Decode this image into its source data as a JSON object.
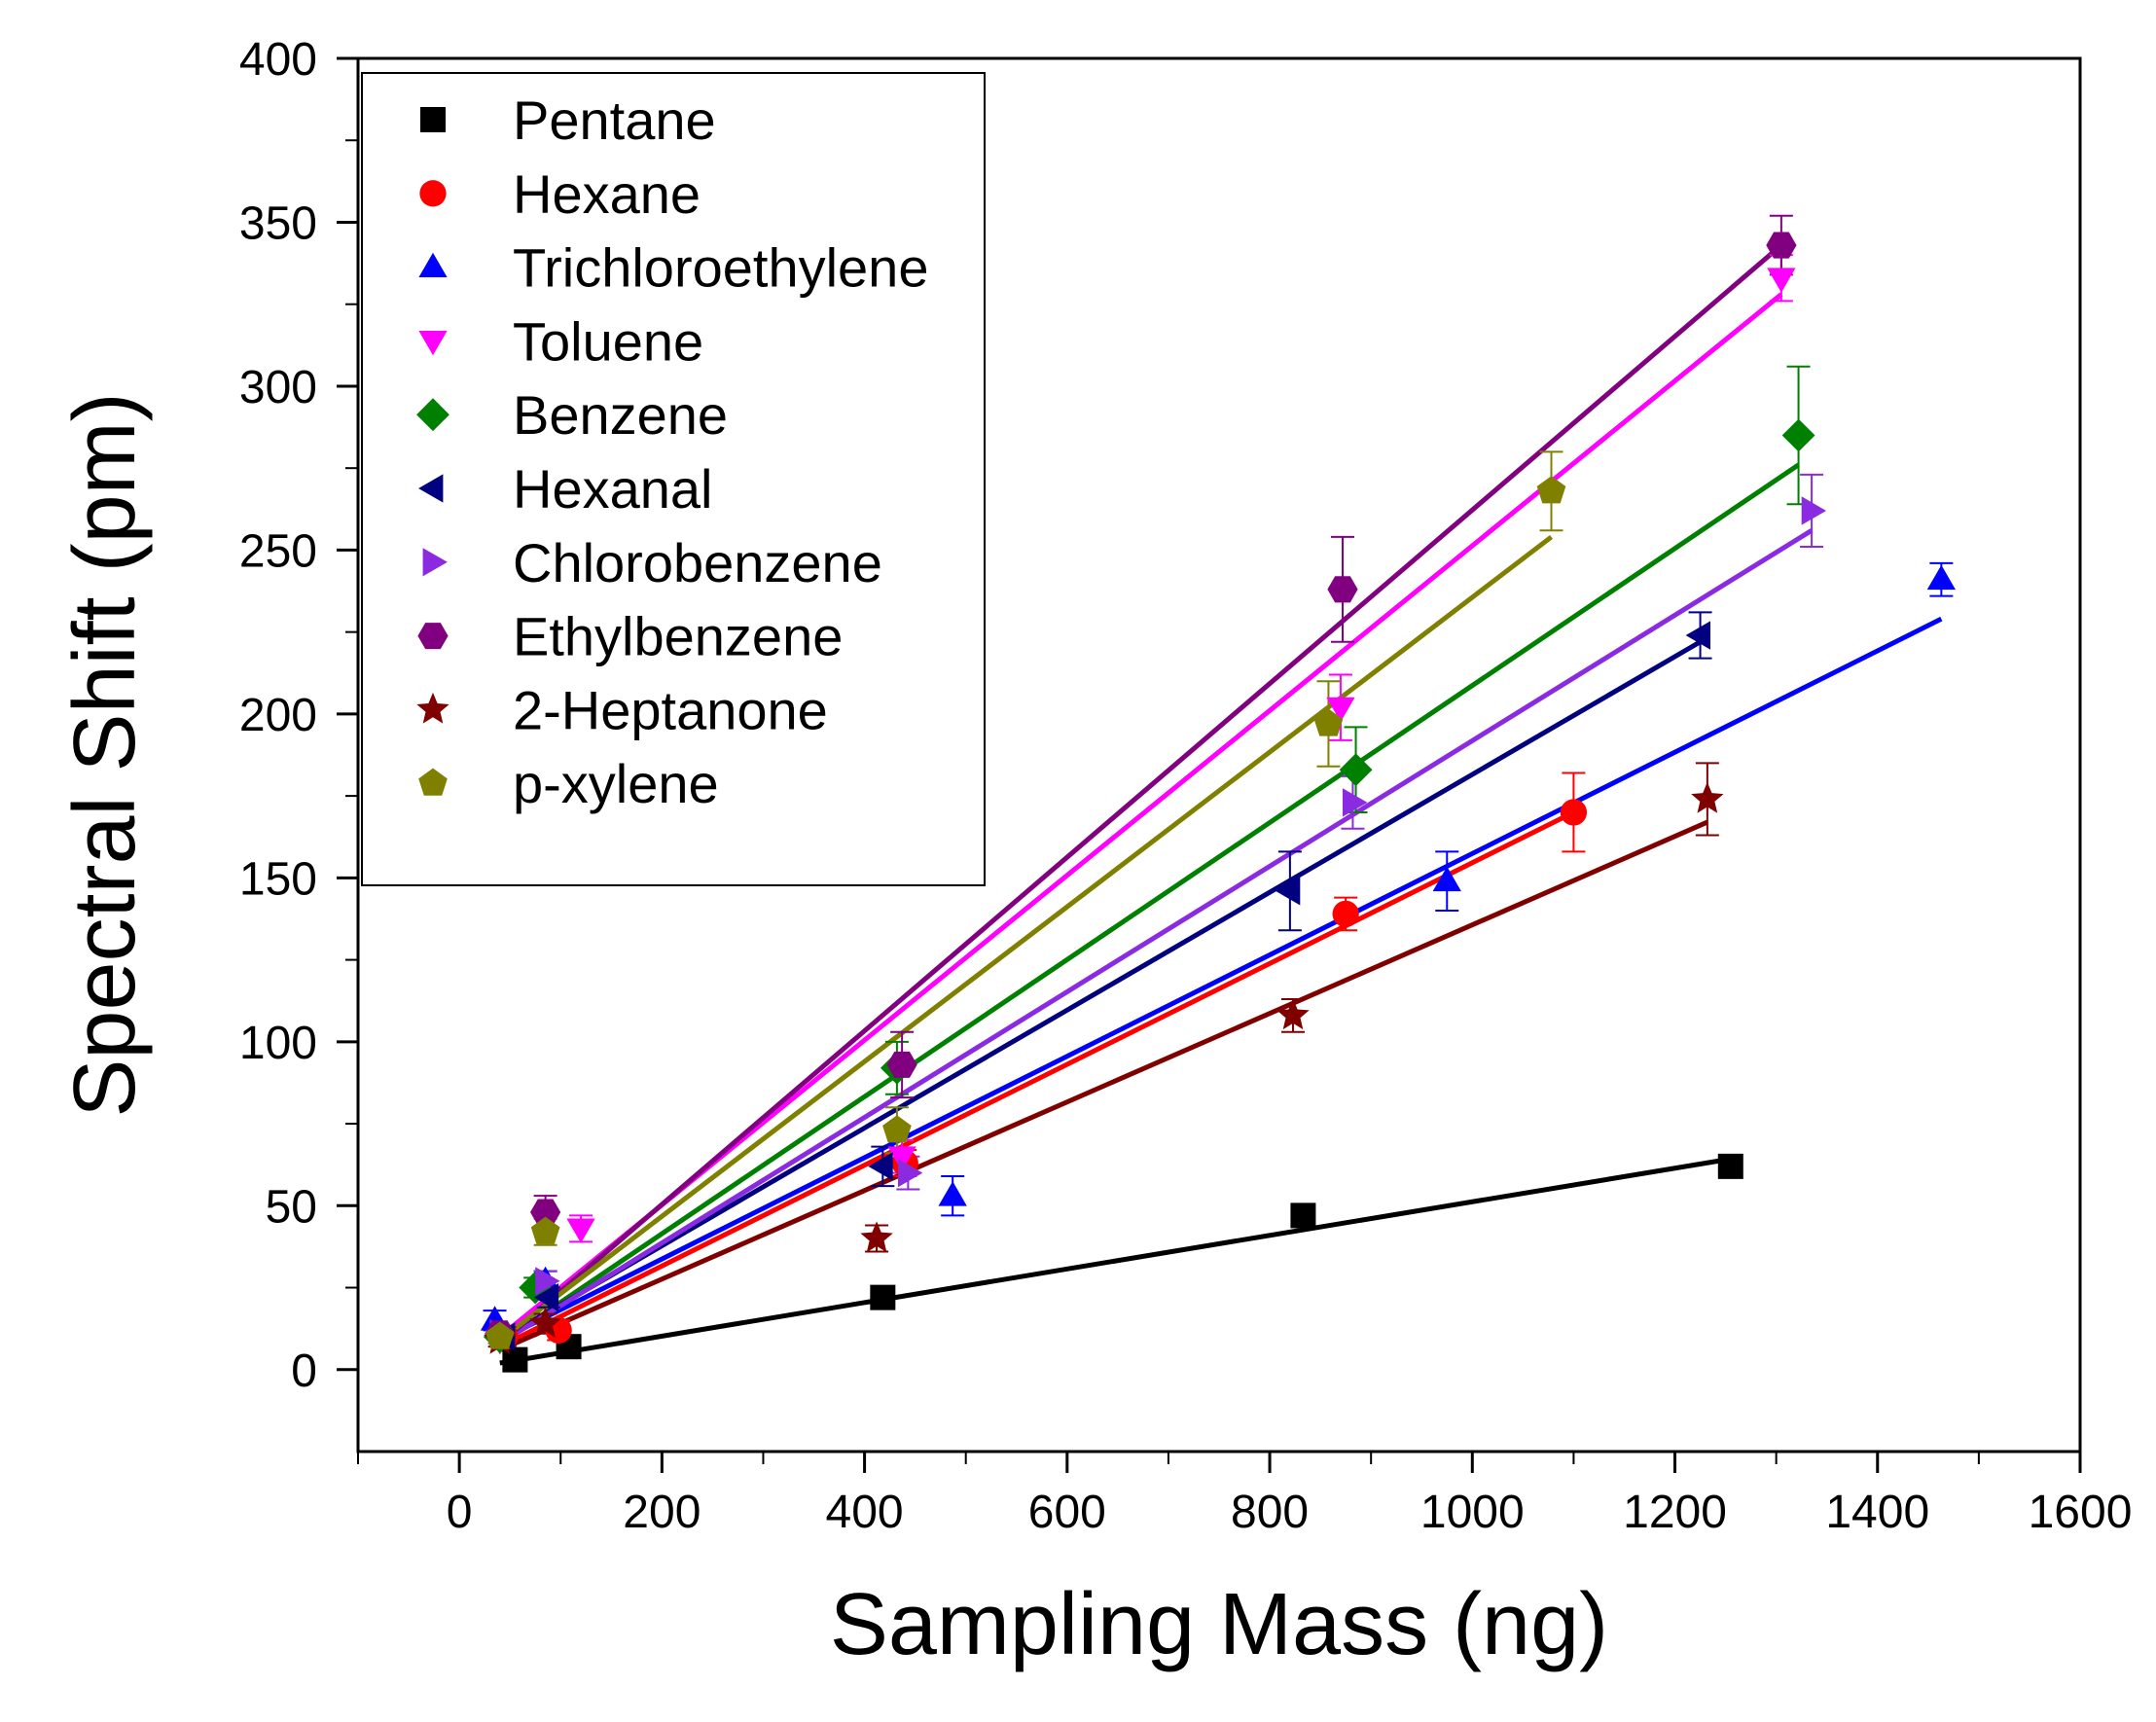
{
  "chart_data": {
    "type": "scatter",
    "title": "",
    "xlabel": "Sampling Mass (ng)",
    "ylabel": "Spectral Shift (pm)",
    "xlim": [
      -100,
      1600
    ],
    "ylim": [
      -25,
      400
    ],
    "xticks": [
      0,
      200,
      400,
      600,
      800,
      1000,
      1200,
      1400,
      1600
    ],
    "yticks": [
      0,
      50,
      100,
      150,
      200,
      250,
      300,
      350,
      400
    ],
    "x_tick_labels": [
      "0",
      "200",
      "400",
      "600",
      "800",
      "1000",
      "1200",
      "1400",
      "1600"
    ],
    "y_tick_labels": [
      "0",
      "50",
      "100",
      "150",
      "200",
      "250",
      "300",
      "350",
      "400"
    ],
    "grid": false,
    "legend_position": "top-left",
    "series": [
      {
        "name": "Pentane",
        "color": "#000000",
        "marker": "square",
        "points": [
          [
            55,
            3,
            0
          ],
          [
            108,
            7,
            0
          ],
          [
            418,
            22,
            0
          ],
          [
            833,
            47,
            0
          ],
          [
            1255,
            62,
            0
          ]
        ],
        "fit": [
          [
            40,
            2
          ],
          [
            1250,
            64
          ]
        ]
      },
      {
        "name": "Hexane",
        "color": "#ff0000",
        "marker": "circle",
        "points": [
          [
            45,
            10,
            3
          ],
          [
            98,
            12,
            3
          ],
          [
            440,
            63,
            4
          ],
          [
            875,
            139,
            5
          ],
          [
            1100,
            170,
            12
          ]
        ],
        "fit": [
          [
            40,
            7
          ],
          [
            1100,
            170
          ]
        ]
      },
      {
        "name": "Trichloroethylene",
        "color": "#0000ff",
        "marker": "triangle-up",
        "points": [
          [
            35,
            15,
            3
          ],
          [
            85,
            27,
            3
          ],
          [
            487,
            53,
            6
          ],
          [
            975,
            149,
            9
          ],
          [
            1463,
            241,
            5
          ]
        ],
        "fit": [
          [
            40,
            9
          ],
          [
            1463,
            229
          ]
        ]
      },
      {
        "name": "Toluene",
        "color": "#ff00ff",
        "marker": "triangle-down",
        "points": [
          [
            40,
            9,
            2
          ],
          [
            120,
            43,
            4
          ],
          [
            437,
            65,
            5
          ],
          [
            870,
            202,
            10
          ],
          [
            1305,
            333,
            7
          ]
        ],
        "fit": [
          [
            40,
            10
          ],
          [
            1305,
            328
          ]
        ]
      },
      {
        "name": "Benzene",
        "color": "#008000",
        "marker": "diamond",
        "points": [
          [
            40,
            10,
            2
          ],
          [
            75,
            25,
            3
          ],
          [
            432,
            92,
            8
          ],
          [
            885,
            183,
            13
          ],
          [
            1322,
            285,
            21
          ]
        ],
        "fit": [
          [
            40,
            8
          ],
          [
            1322,
            276
          ]
        ]
      },
      {
        "name": "Hexanal",
        "color": "#000080",
        "marker": "triangle-left",
        "points": [
          [
            45,
            10,
            2
          ],
          [
            88,
            22,
            3
          ],
          [
            418,
            62,
            6
          ],
          [
            820,
            146,
            12
          ],
          [
            1225,
            224,
            7
          ]
        ],
        "fit": [
          [
            40,
            9
          ],
          [
            1225,
            222
          ]
        ]
      },
      {
        "name": "Chlorobenzene",
        "color": "#8a2be2",
        "marker": "triangle-right",
        "points": [
          [
            40,
            11,
            2
          ],
          [
            85,
            27,
            3
          ],
          [
            443,
            60,
            5
          ],
          [
            882,
            173,
            8
          ],
          [
            1335,
            262,
            11
          ]
        ],
        "fit": [
          [
            40,
            8
          ],
          [
            1335,
            256
          ]
        ]
      },
      {
        "name": "Ethylbenzene",
        "color": "#800080",
        "marker": "hexagon",
        "points": [
          [
            40,
            11,
            2
          ],
          [
            85,
            48,
            5
          ],
          [
            437,
            93,
            10
          ],
          [
            872,
            238,
            16
          ],
          [
            1305,
            343,
            9
          ]
        ],
        "fit": [
          [
            40,
            8
          ],
          [
            1305,
            343
          ]
        ]
      },
      {
        "name": "2-Heptanone",
        "color": "#800000",
        "marker": "star",
        "points": [
          [
            40,
            9,
            2
          ],
          [
            85,
            14,
            3
          ],
          [
            412,
            40,
            4
          ],
          [
            823,
            108,
            5
          ],
          [
            1232,
            174,
            11
          ]
        ],
        "fit": [
          [
            40,
            6
          ],
          [
            1232,
            167
          ]
        ]
      },
      {
        "name": "p-xylene",
        "color": "#808000",
        "marker": "pentagon",
        "points": [
          [
            40,
            10,
            2
          ],
          [
            85,
            42,
            4
          ],
          [
            432,
            73,
            7
          ],
          [
            858,
            197,
            13
          ],
          [
            1078,
            268,
            12
          ]
        ],
        "fit": [
          [
            40,
            9
          ],
          [
            1078,
            254
          ]
        ]
      }
    ]
  }
}
